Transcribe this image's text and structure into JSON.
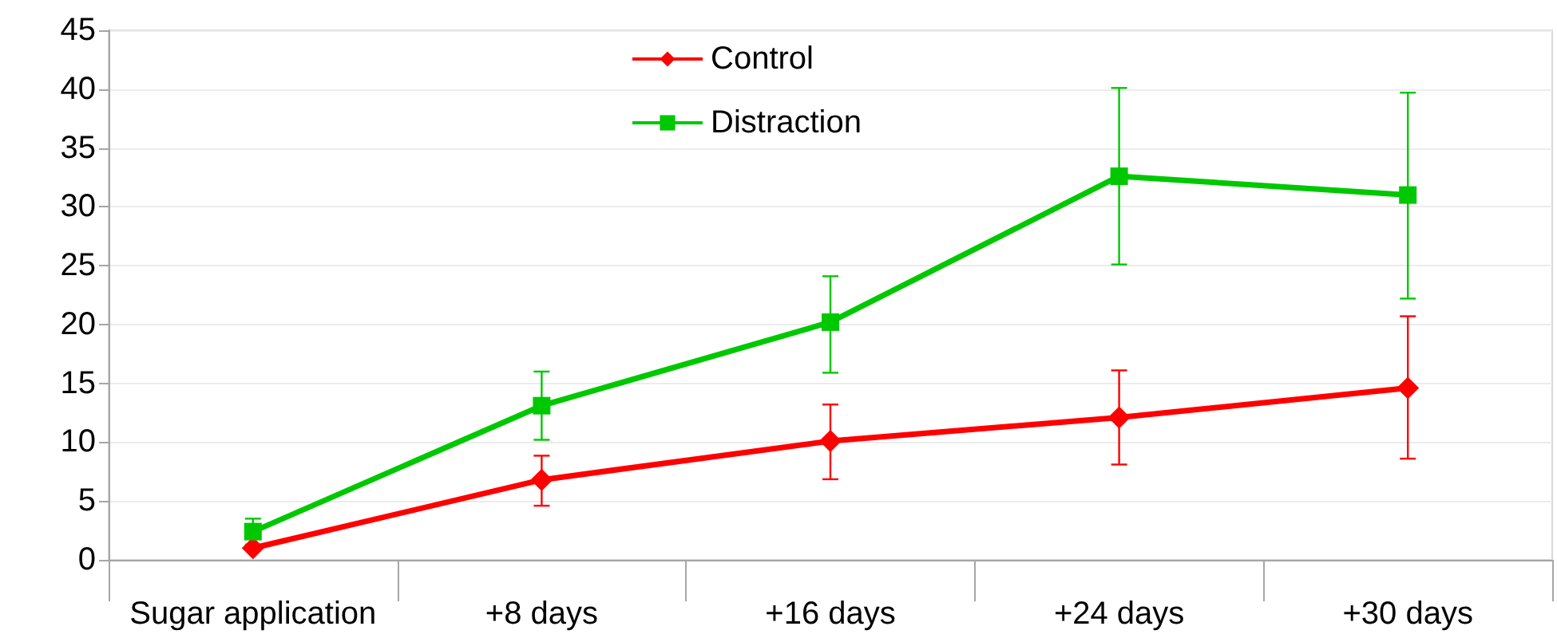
{
  "chart_data": {
    "type": "line",
    "categories": [
      "Sugar application",
      "+8 days",
      "+16 days",
      "+24 days",
      "+30 days"
    ],
    "series": [
      {
        "name": "Control",
        "color": "#ff0000",
        "marker": "diamond",
        "values": [
          1.0,
          6.8,
          10.1,
          12.1,
          14.6
        ],
        "errors": [
          null,
          [
            4.6,
            8.85
          ],
          [
            6.85,
            13.2
          ],
          [
            8.1,
            16.1
          ],
          [
            8.6,
            20.7
          ]
        ]
      },
      {
        "name": "Distraction",
        "color": "#00c800",
        "marker": "square",
        "values": [
          2.4,
          13.1,
          20.2,
          32.6,
          31.0
        ],
        "errors": [
          [
            1.3,
            3.5
          ],
          [
            10.2,
            16.0
          ],
          [
            15.9,
            24.1
          ],
          [
            25.1,
            40.1
          ],
          [
            22.2,
            39.7
          ]
        ]
      }
    ],
    "ylim": [
      0,
      45
    ],
    "yticks": [
      0,
      5,
      10,
      15,
      20,
      25,
      30,
      35,
      40,
      45
    ],
    "grid": "y",
    "legend": "top",
    "line_style": "solid"
  }
}
